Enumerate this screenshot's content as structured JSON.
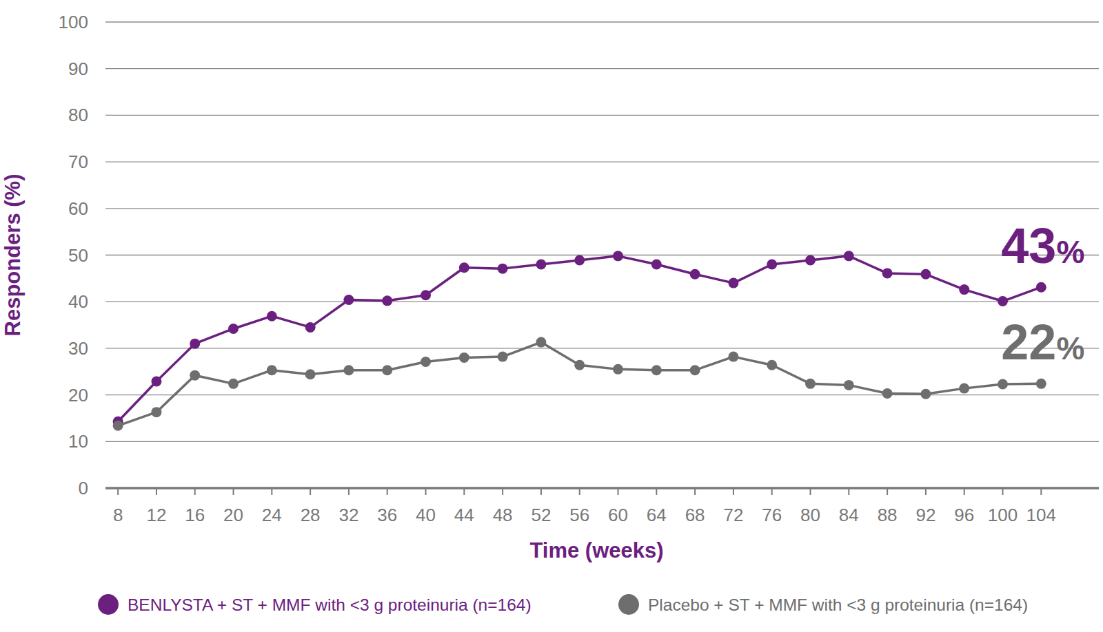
{
  "chart_data": {
    "type": "line",
    "x_label": "Time (weeks)",
    "y_label": "Responders (%)",
    "x": [
      8,
      12,
      16,
      20,
      24,
      28,
      32,
      36,
      40,
      44,
      48,
      52,
      56,
      60,
      64,
      68,
      72,
      76,
      80,
      84,
      88,
      92,
      96,
      100,
      104
    ],
    "xlim": [
      6.7,
      110
    ],
    "xticks": [
      8,
      12,
      16,
      20,
      24,
      28,
      32,
      36,
      40,
      44,
      48,
      52,
      56,
      60,
      64,
      68,
      72,
      76,
      80,
      84,
      88,
      92,
      96,
      100,
      104
    ],
    "ylim": [
      0,
      100
    ],
    "yticks": [
      0,
      10,
      20,
      30,
      40,
      50,
      60,
      70,
      80,
      90,
      100
    ],
    "grid": true,
    "legend": "bottom",
    "marker": "circle",
    "series": [
      {
        "name": "BENLYSTA + ST + MMF with <3 g proteinuria (n=164)",
        "color": "#6b2080",
        "end_label": "43%",
        "values": [
          14.3,
          22.9,
          31.0,
          34.2,
          36.9,
          34.5,
          40.4,
          40.2,
          41.4,
          47.3,
          47.1,
          48.0,
          48.9,
          49.8,
          48.0,
          45.9,
          44.0,
          48.0,
          48.9,
          49.8,
          46.1,
          45.9,
          42.6,
          40.1,
          43.1
        ]
      },
      {
        "name": "Placebo + ST + MMF with <3 g proteinuria (n=164)",
        "color": "#6e6e6e",
        "end_label": "22%",
        "values": [
          13.4,
          16.3,
          24.2,
          22.4,
          25.3,
          24.4,
          25.3,
          25.3,
          27.1,
          28.0,
          28.2,
          31.3,
          26.4,
          25.5,
          25.3,
          25.3,
          28.2,
          26.4,
          22.4,
          22.1,
          20.3,
          20.2,
          21.4,
          22.3,
          22.4
        ]
      }
    ]
  }
}
